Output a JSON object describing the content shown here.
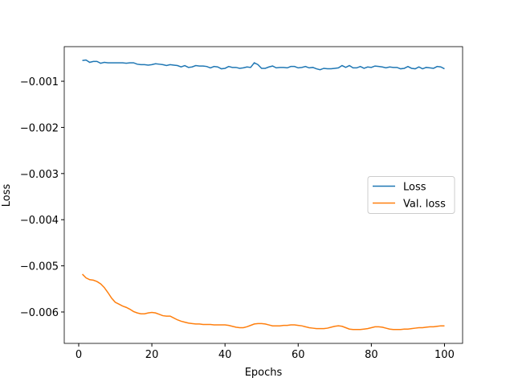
{
  "chart_data": {
    "type": "line",
    "xlabel": "Epochs",
    "ylabel": "Loss",
    "x": [
      1,
      2,
      3,
      4,
      5,
      6,
      7,
      8,
      9,
      10,
      11,
      12,
      13,
      14,
      15,
      16,
      17,
      18,
      19,
      20,
      21,
      22,
      23,
      24,
      25,
      26,
      27,
      28,
      29,
      30,
      31,
      32,
      33,
      34,
      35,
      36,
      37,
      38,
      39,
      40,
      41,
      42,
      43,
      44,
      45,
      46,
      47,
      48,
      49,
      50,
      51,
      52,
      53,
      54,
      55,
      56,
      57,
      58,
      59,
      60,
      61,
      62,
      63,
      64,
      65,
      66,
      67,
      68,
      69,
      70,
      71,
      72,
      73,
      74,
      75,
      76,
      77,
      78,
      79,
      80,
      81,
      82,
      83,
      84,
      85,
      86,
      87,
      88,
      89,
      90,
      91,
      92,
      93,
      94,
      95,
      96,
      97,
      98,
      99,
      100
    ],
    "series": [
      {
        "name": "Loss",
        "color": "#1f77b4",
        "values": [
          -0.00055,
          -0.00054,
          -0.00059,
          -0.00057,
          -0.00057,
          -0.00061,
          -0.00059,
          -0.0006,
          -0.0006,
          -0.0006,
          -0.0006,
          -0.0006,
          -0.00061,
          -0.0006,
          -0.0006,
          -0.00063,
          -0.00064,
          -0.00064,
          -0.00065,
          -0.00064,
          -0.00062,
          -0.00063,
          -0.00064,
          -0.00066,
          -0.00064,
          -0.00065,
          -0.00066,
          -0.00069,
          -0.00066,
          -0.0007,
          -0.00069,
          -0.00066,
          -0.00067,
          -0.00067,
          -0.00068,
          -0.00071,
          -0.00068,
          -0.00069,
          -0.00073,
          -0.00072,
          -0.00068,
          -0.0007,
          -0.0007,
          -0.00072,
          -0.00071,
          -0.00069,
          -0.0007,
          -0.0006,
          -0.00064,
          -0.00072,
          -0.00072,
          -0.00069,
          -0.00067,
          -0.00071,
          -0.0007,
          -0.0007,
          -0.00071,
          -0.00068,
          -0.00068,
          -0.00071,
          -0.0007,
          -0.00068,
          -0.00071,
          -0.0007,
          -0.00073,
          -0.00075,
          -0.00072,
          -0.00073,
          -0.00073,
          -0.00072,
          -0.00071,
          -0.00066,
          -0.0007,
          -0.00066,
          -0.00071,
          -0.00071,
          -0.00068,
          -0.00072,
          -0.00069,
          -0.0007,
          -0.00067,
          -0.00068,
          -0.00069,
          -0.00071,
          -0.00069,
          -0.0007,
          -0.0007,
          -0.00073,
          -0.00072,
          -0.00068,
          -0.00072,
          -0.00073,
          -0.00069,
          -0.00073,
          -0.0007,
          -0.00071,
          -0.00072,
          -0.00068,
          -0.00069,
          -0.00073
        ]
      },
      {
        "name": "Val. loss",
        "color": "#ff7f0e",
        "values": [
          -0.00518,
          -0.00526,
          -0.0053,
          -0.00531,
          -0.00534,
          -0.00539,
          -0.00547,
          -0.00558,
          -0.0057,
          -0.00579,
          -0.00583,
          -0.00587,
          -0.0059,
          -0.00594,
          -0.00599,
          -0.00602,
          -0.00604,
          -0.00604,
          -0.00602,
          -0.00601,
          -0.00602,
          -0.00605,
          -0.00608,
          -0.00609,
          -0.00609,
          -0.00613,
          -0.00617,
          -0.0062,
          -0.00622,
          -0.00624,
          -0.00625,
          -0.00626,
          -0.00626,
          -0.00627,
          -0.00627,
          -0.00627,
          -0.00628,
          -0.00628,
          -0.00628,
          -0.00628,
          -0.00629,
          -0.00631,
          -0.00633,
          -0.00634,
          -0.00634,
          -0.00632,
          -0.00629,
          -0.00626,
          -0.00625,
          -0.00625,
          -0.00626,
          -0.00628,
          -0.0063,
          -0.0063,
          -0.0063,
          -0.00629,
          -0.00629,
          -0.00628,
          -0.00628,
          -0.00629,
          -0.0063,
          -0.00632,
          -0.00634,
          -0.00635,
          -0.00636,
          -0.00636,
          -0.00636,
          -0.00635,
          -0.00633,
          -0.00631,
          -0.0063,
          -0.00631,
          -0.00634,
          -0.00637,
          -0.00638,
          -0.00638,
          -0.00638,
          -0.00637,
          -0.00636,
          -0.00634,
          -0.00632,
          -0.00632,
          -0.00633,
          -0.00635,
          -0.00637,
          -0.00638,
          -0.00638,
          -0.00638,
          -0.00637,
          -0.00637,
          -0.00636,
          -0.00635,
          -0.00634,
          -0.00634,
          -0.00633,
          -0.00632,
          -0.00632,
          -0.00631,
          -0.0063,
          -0.0063
        ]
      }
    ],
    "xlim": [
      -3.95,
      104.95
    ],
    "xticks": [
      0,
      20,
      40,
      60,
      80,
      100
    ],
    "ylim": [
      -0.00668,
      -0.00025
    ],
    "yticks": [
      {
        "value": -0.006,
        "label": "−0.006"
      },
      {
        "value": -0.005,
        "label": "−0.005"
      },
      {
        "value": -0.004,
        "label": "−0.004"
      },
      {
        "value": -0.003,
        "label": "−0.003"
      },
      {
        "value": -0.002,
        "label": "−0.002"
      },
      {
        "value": -0.001,
        "label": "−0.001"
      }
    ],
    "legend": "center right"
  }
}
